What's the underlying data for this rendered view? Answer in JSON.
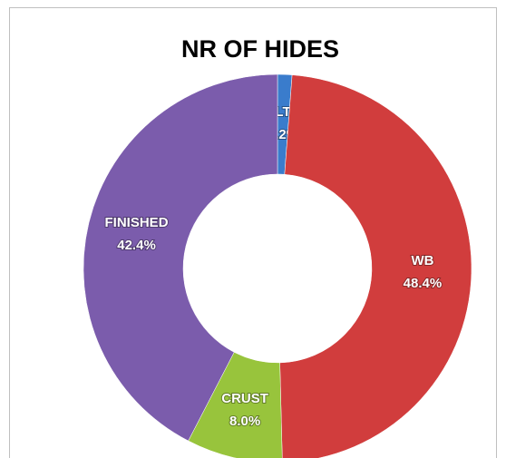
{
  "chart_data": {
    "type": "donut",
    "title": "NR OF HIDES",
    "categories": [
      "SALTED",
      "WB",
      "CRUST",
      "FINISHED"
    ],
    "values": [
      1.2,
      48.4,
      8.0,
      42.4
    ],
    "value_labels": [
      "1.2%",
      "48.4%",
      "8.0%",
      "42.4%"
    ],
    "colors": [
      "#3a7ccc",
      "#d13d3d",
      "#98c43c",
      "#7b5cac"
    ]
  }
}
